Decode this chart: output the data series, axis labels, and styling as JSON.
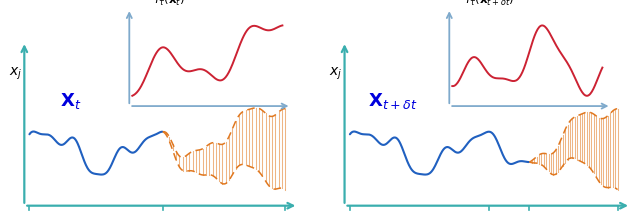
{
  "fig_width": 6.4,
  "fig_height": 2.19,
  "dpi": 100,
  "teal_color": "#3aaeae",
  "inset_axis_color": "#7faacc",
  "blue_ts_color": "#2060c0",
  "red_color": "#cc2233",
  "orange_color": "#e07820",
  "label_color_blue": "#0000dd"
}
